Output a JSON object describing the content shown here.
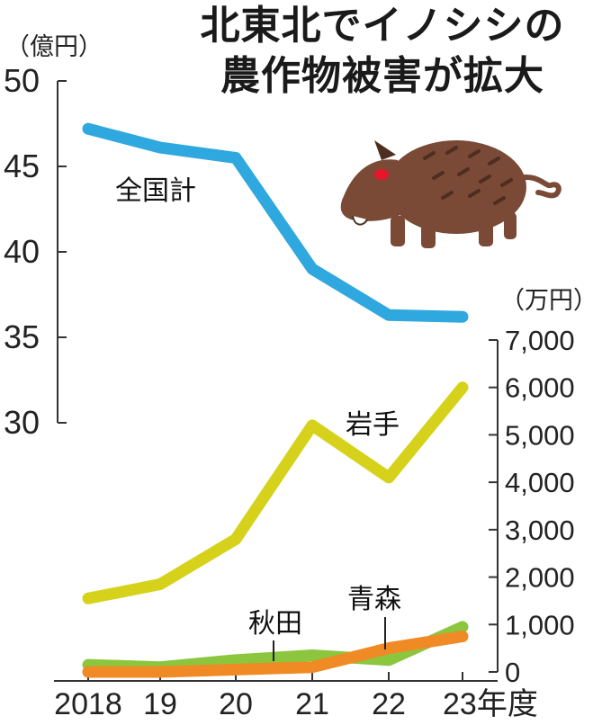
{
  "title": {
    "line1": "北東北でイノシシの",
    "line2": "農作物被害が拡大"
  },
  "colors": {
    "national": "#2fa8df",
    "iwate": "#d6d21c",
    "akita": "#8cc63f",
    "aomori": "#f08a24",
    "boar_body": "#7a4a36",
    "boar_dark": "#4e2e20",
    "boar_eye": "#e8162a"
  },
  "chart_data": [
    {
      "type": "line",
      "x": [
        "2018",
        "19",
        "20",
        "21",
        "22",
        "23年度"
      ],
      "unit_label": "（億円）",
      "ylim": [
        30,
        50
      ],
      "yticks": [
        30,
        35,
        40,
        45,
        50
      ],
      "axis_side": "left",
      "series": [
        {
          "name": "全国計",
          "values": [
            47.2,
            46.1,
            45.5,
            39.0,
            36.3,
            36.2
          ]
        }
      ]
    },
    {
      "type": "line",
      "x": [
        "2018",
        "19",
        "20",
        "21",
        "22",
        "23年度"
      ],
      "unit_label": "（万円）",
      "ylim": [
        0,
        7000
      ],
      "yticks": [
        "0",
        "1,000",
        "2,000",
        "3,000",
        "4,000",
        "5,000",
        "6,000",
        "7,000"
      ],
      "axis_side": "right",
      "series": [
        {
          "name": "岩手",
          "values": [
            1550,
            1850,
            2800,
            5200,
            4100,
            6000
          ]
        },
        {
          "name": "秋田",
          "values": [
            150,
            100,
            250,
            350,
            250,
            950
          ]
        },
        {
          "name": "青森",
          "values": [
            0,
            0,
            50,
            100,
            500,
            750
          ]
        }
      ]
    }
  ]
}
